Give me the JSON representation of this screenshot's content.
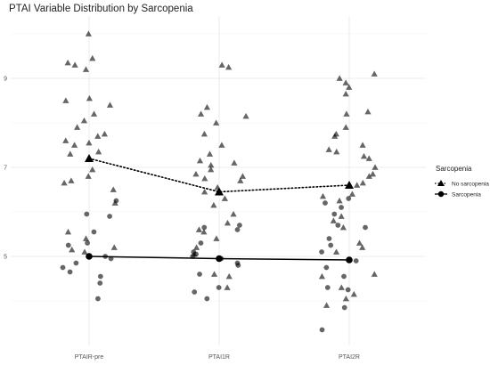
{
  "chart_data": {
    "type": "scatter",
    "title": "PTAI Variable Distribution by Sarcopenia",
    "xlabel": "",
    "ylabel": "",
    "categories": [
      "PTAIR-pre",
      "PTAI1R",
      "PTAI2R"
    ],
    "ylim": [
      3.0,
      10.4
    ],
    "yticks": [
      5,
      7,
      9
    ],
    "grid": true,
    "legend": {
      "title": "Sarcopenia",
      "position": "right"
    },
    "series": [
      {
        "name": "No sarcopenia",
        "marker": "triangle",
        "line_style": "dotted",
        "color": "#000000",
        "means": [
          7.2,
          6.45,
          6.6
        ],
        "points": [
          {
            "x": "PTAIR-pre",
            "y": 10.0
          },
          {
            "x": "PTAIR-pre",
            "y": 9.45
          },
          {
            "x": "PTAIR-pre",
            "y": 9.35
          },
          {
            "x": "PTAIR-pre",
            "y": 9.3
          },
          {
            "x": "PTAIR-pre",
            "y": 9.2
          },
          {
            "x": "PTAIR-pre",
            "y": 8.55
          },
          {
            "x": "PTAIR-pre",
            "y": 8.5
          },
          {
            "x": "PTAIR-pre",
            "y": 8.4
          },
          {
            "x": "PTAIR-pre",
            "y": 8.2
          },
          {
            "x": "PTAIR-pre",
            "y": 8.05
          },
          {
            "x": "PTAIR-pre",
            "y": 7.9
          },
          {
            "x": "PTAIR-pre",
            "y": 7.75
          },
          {
            "x": "PTAIR-pre",
            "y": 7.7
          },
          {
            "x": "PTAIR-pre",
            "y": 7.6
          },
          {
            "x": "PTAIR-pre",
            "y": 7.55
          },
          {
            "x": "PTAIR-pre",
            "y": 7.5
          },
          {
            "x": "PTAIR-pre",
            "y": 7.35
          },
          {
            "x": "PTAIR-pre",
            "y": 7.3
          },
          {
            "x": "PTAIR-pre",
            "y": 6.95
          },
          {
            "x": "PTAIR-pre",
            "y": 6.8
          },
          {
            "x": "PTAIR-pre",
            "y": 6.7
          },
          {
            "x": "PTAIR-pre",
            "y": 6.65
          },
          {
            "x": "PTAIR-pre",
            "y": 6.5
          },
          {
            "x": "PTAIR-pre",
            "y": 6.2
          },
          {
            "x": "PTAIR-pre",
            "y": 5.55
          },
          {
            "x": "PTAIR-pre",
            "y": 5.4
          },
          {
            "x": "PTAIR-pre",
            "y": 5.2
          },
          {
            "x": "PTAIR-pre",
            "y": 5.15
          },
          {
            "x": "PTAIR-pre",
            "y": 5.1
          },
          {
            "x": "PTAI1R",
            "y": 9.3
          },
          {
            "x": "PTAI1R",
            "y": 9.25
          },
          {
            "x": "PTAI1R",
            "y": 8.35
          },
          {
            "x": "PTAI1R",
            "y": 8.2
          },
          {
            "x": "PTAI1R",
            "y": 8.15
          },
          {
            "x": "PTAI1R",
            "y": 8.0
          },
          {
            "x": "PTAI1R",
            "y": 7.75
          },
          {
            "x": "PTAI1R",
            "y": 7.5
          },
          {
            "x": "PTAI1R",
            "y": 7.3
          },
          {
            "x": "PTAI1R",
            "y": 7.15
          },
          {
            "x": "PTAI1R",
            "y": 7.1
          },
          {
            "x": "PTAI1R",
            "y": 7.05
          },
          {
            "x": "PTAI1R",
            "y": 6.95
          },
          {
            "x": "PTAI1R",
            "y": 6.85
          },
          {
            "x": "PTAI1R",
            "y": 6.8
          },
          {
            "x": "PTAI1R",
            "y": 6.75
          },
          {
            "x": "PTAI1R",
            "y": 6.7
          },
          {
            "x": "PTAI1R",
            "y": 6.55
          },
          {
            "x": "PTAI1R",
            "y": 6.45
          },
          {
            "x": "PTAI1R",
            "y": 6.3
          },
          {
            "x": "PTAI1R",
            "y": 6.15
          },
          {
            "x": "PTAI1R",
            "y": 5.95
          },
          {
            "x": "PTAI1R",
            "y": 5.75
          },
          {
            "x": "PTAI1R",
            "y": 5.6
          },
          {
            "x": "PTAI1R",
            "y": 5.55
          },
          {
            "x": "PTAI1R",
            "y": 5.4
          },
          {
            "x": "PTAI1R",
            "y": 5.2
          },
          {
            "x": "PTAI1R",
            "y": 5.05
          },
          {
            "x": "PTAI1R",
            "y": 4.6
          },
          {
            "x": "PTAI1R",
            "y": 4.55
          },
          {
            "x": "PTAI1R",
            "y": 4.3
          },
          {
            "x": "PTAI2R",
            "y": 9.1
          },
          {
            "x": "PTAI2R",
            "y": 9.0
          },
          {
            "x": "PTAI2R",
            "y": 8.9
          },
          {
            "x": "PTAI2R",
            "y": 8.8
          },
          {
            "x": "PTAI2R",
            "y": 8.65
          },
          {
            "x": "PTAI2R",
            "y": 8.25
          },
          {
            "x": "PTAI2R",
            "y": 8.2
          },
          {
            "x": "PTAI2R",
            "y": 7.9
          },
          {
            "x": "PTAI2R",
            "y": 7.75
          },
          {
            "x": "PTAI2R",
            "y": 7.7
          },
          {
            "x": "PTAI2R",
            "y": 7.5
          },
          {
            "x": "PTAI2R",
            "y": 7.4
          },
          {
            "x": "PTAI2R",
            "y": 7.35
          },
          {
            "x": "PTAI2R",
            "y": 7.25
          },
          {
            "x": "PTAI2R",
            "y": 7.2
          },
          {
            "x": "PTAI2R",
            "y": 7.0
          },
          {
            "x": "PTAI2R",
            "y": 6.85
          },
          {
            "x": "PTAI2R",
            "y": 6.8
          },
          {
            "x": "PTAI2R",
            "y": 6.65
          },
          {
            "x": "PTAI2R",
            "y": 6.6
          },
          {
            "x": "PTAI2R",
            "y": 6.4
          },
          {
            "x": "PTAI2R",
            "y": 6.35
          },
          {
            "x": "PTAI2R",
            "y": 6.25
          },
          {
            "x": "PTAI2R",
            "y": 5.9
          },
          {
            "x": "PTAI2R",
            "y": 5.8
          },
          {
            "x": "PTAI2R",
            "y": 5.65
          },
          {
            "x": "PTAI2R",
            "y": 5.3
          },
          {
            "x": "PTAI2R",
            "y": 5.2
          },
          {
            "x": "PTAI2R",
            "y": 5.1
          },
          {
            "x": "PTAI2R",
            "y": 4.6
          },
          {
            "x": "PTAI2R",
            "y": 4.55
          },
          {
            "x": "PTAI2R",
            "y": 4.3
          },
          {
            "x": "PTAI2R",
            "y": 4.15
          },
          {
            "x": "PTAI2R",
            "y": 4.05
          },
          {
            "x": "PTAI2R",
            "y": 3.9
          }
        ]
      },
      {
        "name": "Sarcopenia",
        "marker": "circle",
        "line_style": "solid",
        "color": "#000000",
        "means": [
          5.0,
          4.95,
          4.92
        ],
        "points": [
          {
            "x": "PTAIR-pre",
            "y": 6.25
          },
          {
            "x": "PTAIR-pre",
            "y": 5.95
          },
          {
            "x": "PTAIR-pre",
            "y": 5.9
          },
          {
            "x": "PTAIR-pre",
            "y": 5.55
          },
          {
            "x": "PTAIR-pre",
            "y": 5.3
          },
          {
            "x": "PTAIR-pre",
            "y": 5.25
          },
          {
            "x": "PTAIR-pre",
            "y": 5.0
          },
          {
            "x": "PTAIR-pre",
            "y": 4.95
          },
          {
            "x": "PTAIR-pre",
            "y": 4.85
          },
          {
            "x": "PTAIR-pre",
            "y": 4.75
          },
          {
            "x": "PTAIR-pre",
            "y": 4.65
          },
          {
            "x": "PTAIR-pre",
            "y": 4.55
          },
          {
            "x": "PTAIR-pre",
            "y": 4.4
          },
          {
            "x": "PTAIR-pre",
            "y": 4.05
          },
          {
            "x": "PTAI1R",
            "y": 5.7
          },
          {
            "x": "PTAI1R",
            "y": 5.65
          },
          {
            "x": "PTAI1R",
            "y": 5.6
          },
          {
            "x": "PTAI1R",
            "y": 5.3
          },
          {
            "x": "PTAI1R",
            "y": 5.1
          },
          {
            "x": "PTAI1R",
            "y": 5.05
          },
          {
            "x": "PTAI1R",
            "y": 5.0
          },
          {
            "x": "PTAI1R",
            "y": 4.95
          },
          {
            "x": "PTAI1R",
            "y": 4.85
          },
          {
            "x": "PTAI1R",
            "y": 4.8
          },
          {
            "x": "PTAI1R",
            "y": 4.6
          },
          {
            "x": "PTAI1R",
            "y": 4.3
          },
          {
            "x": "PTAI1R",
            "y": 4.2
          },
          {
            "x": "PTAI1R",
            "y": 4.05
          },
          {
            "x": "PTAI2R",
            "y": 6.3
          },
          {
            "x": "PTAI2R",
            "y": 6.2
          },
          {
            "x": "PTAI2R",
            "y": 6.1
          },
          {
            "x": "PTAI2R",
            "y": 5.95
          },
          {
            "x": "PTAI2R",
            "y": 5.7
          },
          {
            "x": "PTAI2R",
            "y": 5.65
          },
          {
            "x": "PTAI2R",
            "y": 5.4
          },
          {
            "x": "PTAI2R",
            "y": 5.25
          },
          {
            "x": "PTAI2R",
            "y": 5.1
          },
          {
            "x": "PTAI2R",
            "y": 4.9
          },
          {
            "x": "PTAI2R",
            "y": 4.75
          },
          {
            "x": "PTAI2R",
            "y": 4.55
          },
          {
            "x": "PTAI2R",
            "y": 4.3
          },
          {
            "x": "PTAI2R",
            "y": 4.25
          },
          {
            "x": "PTAI2R",
            "y": 3.85
          },
          {
            "x": "PTAI2R",
            "y": 3.35
          }
        ]
      }
    ]
  }
}
